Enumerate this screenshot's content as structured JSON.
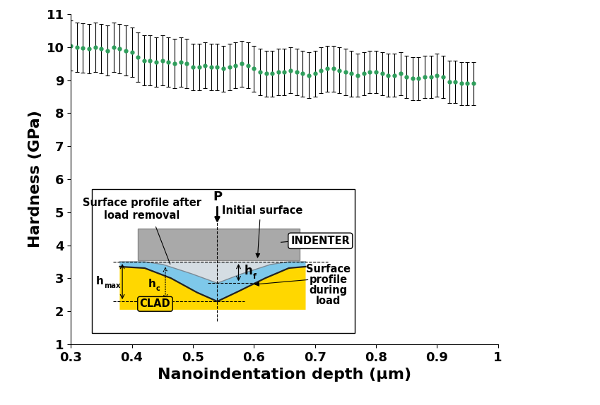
{
  "chart_data": {
    "type": "scatter",
    "x_label": "Nanoindentation depth (µm)",
    "y_label": "Hardness (GPa)",
    "x": [
      0.3,
      0.31,
      0.32,
      0.33,
      0.34,
      0.35,
      0.36,
      0.37,
      0.38,
      0.39,
      0.4,
      0.41,
      0.42,
      0.43,
      0.44,
      0.45,
      0.46,
      0.47,
      0.48,
      0.49,
      0.5,
      0.51,
      0.52,
      0.53,
      0.54,
      0.55,
      0.56,
      0.57,
      0.58,
      0.59,
      0.6,
      0.61,
      0.62,
      0.63,
      0.64,
      0.65,
      0.66,
      0.67,
      0.68,
      0.69,
      0.7,
      0.71,
      0.72,
      0.73,
      0.74,
      0.75,
      0.76,
      0.77,
      0.78,
      0.79,
      0.8,
      0.81,
      0.82,
      0.83,
      0.84,
      0.85,
      0.86,
      0.87,
      0.88,
      0.89,
      0.9,
      0.91,
      0.92,
      0.93,
      0.94,
      0.95,
      0.96
    ],
    "values": [
      10.05,
      10.0,
      9.98,
      9.95,
      10.0,
      9.95,
      9.9,
      10.0,
      9.95,
      9.9,
      9.85,
      9.7,
      9.6,
      9.6,
      9.55,
      9.6,
      9.55,
      9.5,
      9.55,
      9.5,
      9.4,
      9.4,
      9.45,
      9.4,
      9.4,
      9.35,
      9.4,
      9.45,
      9.5,
      9.45,
      9.35,
      9.25,
      9.2,
      9.2,
      9.25,
      9.25,
      9.3,
      9.25,
      9.2,
      9.15,
      9.2,
      9.3,
      9.35,
      9.35,
      9.3,
      9.25,
      9.2,
      9.15,
      9.2,
      9.25,
      9.25,
      9.2,
      9.15,
      9.15,
      9.2,
      9.1,
      9.05,
      9.05,
      9.1,
      9.1,
      9.15,
      9.1,
      8.95,
      8.95,
      8.9,
      8.9,
      8.9
    ],
    "errors": [
      0.75,
      0.75,
      0.75,
      0.75,
      0.75,
      0.75,
      0.75,
      0.75,
      0.75,
      0.75,
      0.75,
      0.75,
      0.75,
      0.75,
      0.75,
      0.75,
      0.75,
      0.75,
      0.75,
      0.75,
      0.7,
      0.7,
      0.7,
      0.7,
      0.7,
      0.7,
      0.7,
      0.7,
      0.7,
      0.7,
      0.7,
      0.7,
      0.7,
      0.7,
      0.7,
      0.7,
      0.7,
      0.7,
      0.7,
      0.7,
      0.7,
      0.7,
      0.7,
      0.7,
      0.7,
      0.7,
      0.7,
      0.65,
      0.65,
      0.65,
      0.65,
      0.65,
      0.65,
      0.65,
      0.65,
      0.65,
      0.65,
      0.65,
      0.65,
      0.65,
      0.65,
      0.65,
      0.65,
      0.65,
      0.65,
      0.65,
      0.65
    ],
    "color": "#2e9e5b",
    "marker": "o",
    "xlim": [
      0.3,
      1
    ],
    "ylim": [
      1,
      11
    ],
    "xticks": [
      0.3,
      0.4,
      0.5,
      0.6,
      0.7,
      0.8,
      0.9,
      1
    ],
    "yticks": [
      1,
      2,
      3,
      4,
      5,
      6,
      7,
      8,
      9,
      10,
      11
    ],
    "grid": false
  },
  "inset": {
    "load": "P",
    "surface_after": "Surface profile after\nload removal",
    "initial_surface": "Initial surface",
    "indenter": "INDENTER",
    "surface_during": "Surface\nprofile\nduring\nload",
    "material": "CLAD",
    "h_max": {
      "symbol": "h",
      "subscript": "max"
    },
    "h_c": {
      "symbol": "h",
      "subscript": "c"
    },
    "h_f": {
      "symbol": "h",
      "subscript": "f"
    }
  }
}
